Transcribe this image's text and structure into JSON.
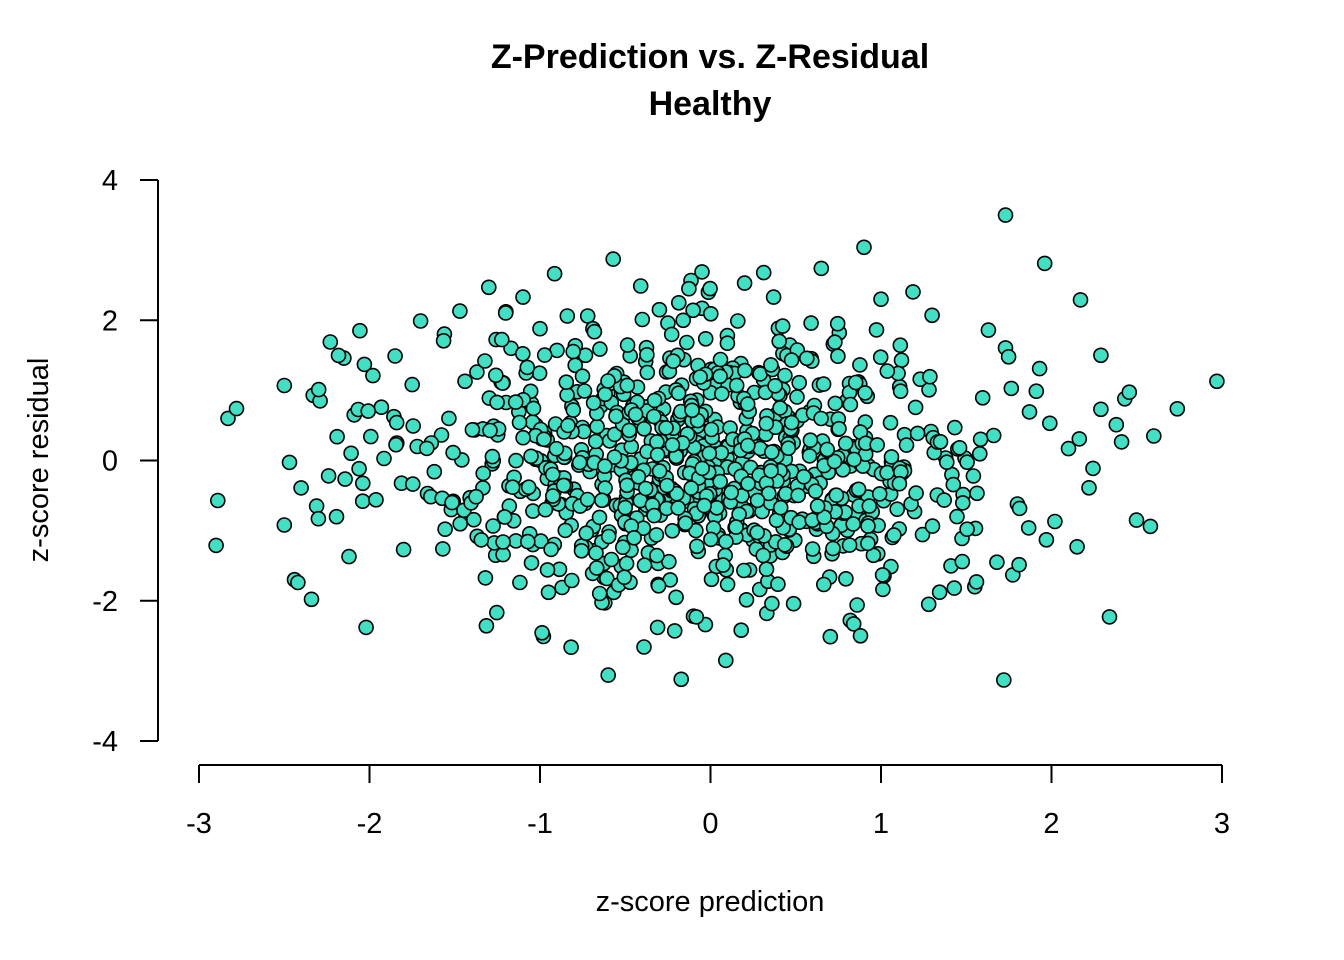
{
  "chart_data": {
    "type": "scatter",
    "title": "Z-Prediction vs. Z-Residual",
    "subtitle": "Healthy",
    "xlabel": "z-score prediction",
    "ylabel": "z-score residual",
    "xlim": [
      -3,
      3
    ],
    "ylim": [
      -4,
      4
    ],
    "x_ticks": [
      "-3",
      "-2",
      "-1",
      "0",
      "1",
      "2",
      "3"
    ],
    "y_ticks": [
      "-4",
      "-2",
      "0",
      "2",
      "4"
    ],
    "grid": false,
    "legend": "none",
    "point_color": "#40E0C4",
    "point_edge_color": "#000000",
    "point_count": 1000,
    "seed_points": [
      [
        -2.89,
        -0.57
      ],
      [
        -2.9,
        -1.21
      ],
      [
        -2.83,
        0.6
      ],
      [
        -2.78,
        0.74
      ],
      [
        -2.5,
        1.07
      ],
      [
        -2.5,
        -0.92
      ],
      [
        -2.44,
        -1.7
      ],
      [
        -2.42,
        -1.74
      ],
      [
        -2.34,
        -1.98
      ],
      [
        -2.33,
        0.93
      ],
      [
        -2.31,
        -0.65
      ],
      [
        -2.3,
        -0.83
      ],
      [
        -2.29,
        0.85
      ],
      [
        -2.24,
        -0.22
      ],
      [
        -2.23,
        1.69
      ],
      [
        -2.19,
        0.34
      ],
      [
        -2.15,
        1.46
      ],
      [
        -2.12,
        -1.37
      ],
      [
        -2.09,
        0.65
      ],
      [
        -2.03,
        1.37
      ],
      [
        -2.02,
        -2.38
      ],
      [
        -2.04,
        -0.58
      ],
      [
        -1.98,
        1.21
      ],
      [
        -1.93,
        0.76
      ],
      [
        -1.85,
        1.49
      ],
      [
        -1.84,
        0.25
      ],
      [
        -1.8,
        -1.27
      ],
      [
        -1.7,
        1.99
      ],
      [
        -1.72,
        0.2
      ],
      [
        -1.66,
        -0.47
      ],
      [
        -1.62,
        -0.16
      ],
      [
        -1.57,
        -1.26
      ],
      [
        -1.52,
        -0.7
      ],
      [
        -1.47,
        2.13
      ],
      [
        -1.44,
        1.13
      ],
      [
        -1.41,
        -0.53
      ],
      [
        -1.37,
        1.26
      ],
      [
        -1.3,
        2.47
      ],
      [
        -1.26,
        -1.35
      ],
      [
        -1.2,
        2.12
      ],
      [
        -1.17,
        1.6
      ],
      [
        -1.1,
        2.33
      ],
      [
        -1.05,
        -1.46
      ],
      [
        -1.0,
        1.88
      ],
      [
        -0.98,
        -2.51
      ],
      [
        -0.95,
        -1.88
      ],
      [
        -0.9,
        1.57
      ],
      [
        -0.84,
        2.06
      ],
      [
        -0.72,
        2.06
      ],
      [
        -0.69,
        1.88
      ],
      [
        -0.6,
        -3.06
      ],
      [
        -0.62,
        -2.03
      ],
      [
        -0.55,
        1.24
      ],
      [
        -0.4,
        2.01
      ],
      [
        -0.39,
        -2.66
      ],
      [
        -0.3,
        2.15
      ],
      [
        -0.31,
        -2.38
      ],
      [
        -0.25,
        1.96
      ],
      [
        -0.21,
        -2.43
      ],
      [
        -0.16,
        2.0
      ],
      [
        -0.1,
        -2.22
      ],
      [
        -0.05,
        2.17
      ],
      [
        -0.05,
        2.69
      ],
      [
        -0.03,
        -2.34
      ],
      [
        0.09,
        -2.85
      ],
      [
        0.16,
        1.99
      ],
      [
        0.2,
        2.53
      ],
      [
        0.18,
        -2.42
      ],
      [
        0.25,
        -1.14
      ],
      [
        0.33,
        -2.18
      ],
      [
        0.37,
        2.33
      ],
      [
        0.52,
        1.11
      ],
      [
        0.59,
        1.96
      ],
      [
        0.65,
        2.74
      ],
      [
        0.72,
        1.66
      ],
      [
        0.82,
        -2.28
      ],
      [
        0.84,
        -2.33
      ],
      [
        0.9,
        3.04
      ],
      [
        0.88,
        -2.5
      ],
      [
        0.86,
        -2.06
      ],
      [
        1.0,
        2.3
      ],
      [
        1.12,
        1.43
      ],
      [
        1.3,
        2.07
      ],
      [
        1.28,
        -2.05
      ],
      [
        1.43,
        -1.82
      ],
      [
        1.55,
        -1.8
      ],
      [
        1.63,
        1.86
      ],
      [
        1.68,
        -1.45
      ],
      [
        1.73,
        3.5
      ],
      [
        1.72,
        -3.13
      ],
      [
        1.8,
        -0.62
      ],
      [
        1.93,
        1.31
      ],
      [
        1.96,
        2.81
      ],
      [
        1.99,
        0.53
      ],
      [
        2.02,
        -0.87
      ],
      [
        2.1,
        0.17
      ],
      [
        2.17,
        2.29
      ],
      [
        2.15,
        -1.23
      ],
      [
        2.22,
        -0.39
      ],
      [
        2.29,
        1.5
      ],
      [
        2.29,
        0.73
      ],
      [
        2.34,
        -2.23
      ],
      [
        2.38,
        0.51
      ],
      [
        2.43,
        0.88
      ],
      [
        2.58,
        -0.94
      ],
      [
        2.6,
        0.35
      ],
      [
        2.97,
        1.13
      ]
    ]
  }
}
